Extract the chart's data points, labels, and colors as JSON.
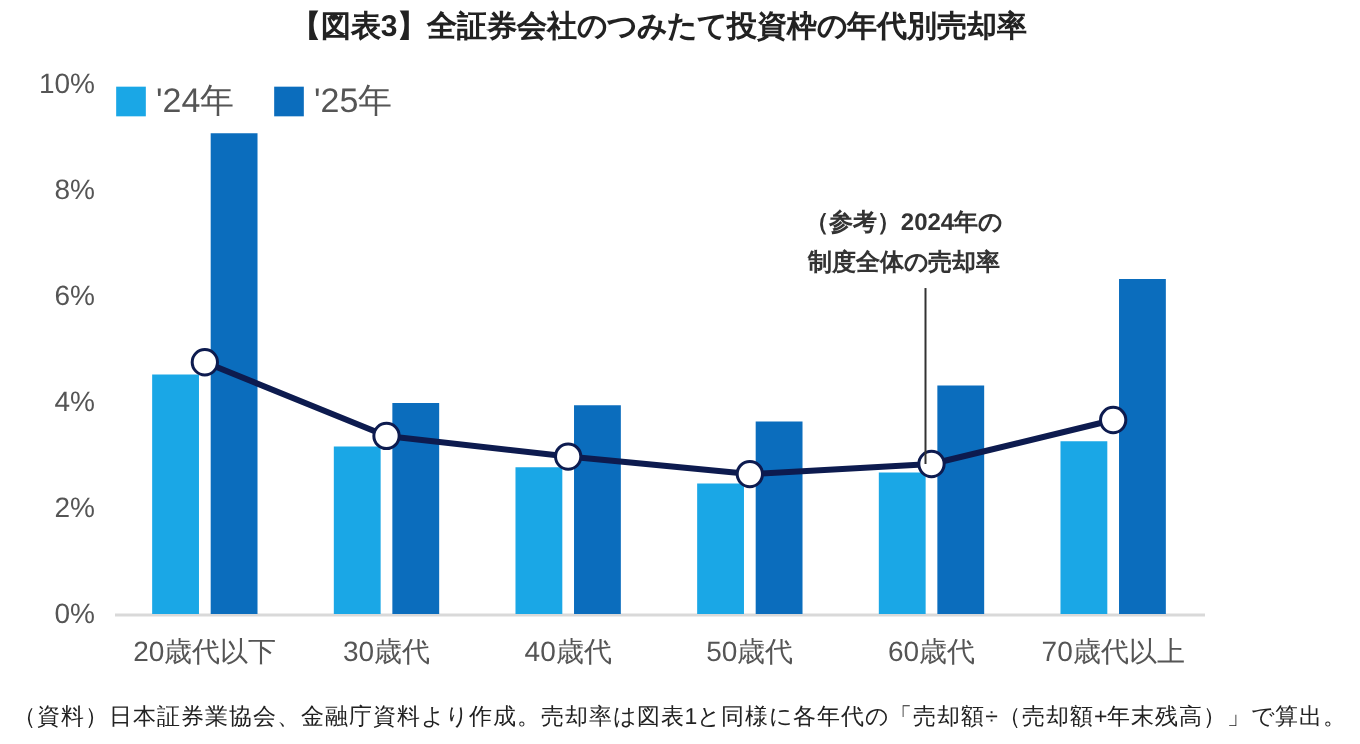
{
  "chart_data": {
    "type": "bar",
    "title": "【図表3】全証券会社のつみたて投資枠の年代別売却率",
    "categories": [
      "20歳代以下",
      "30歳代",
      "40歳代",
      "50歳代",
      "60歳代",
      "70歳代以上"
    ],
    "series": [
      {
        "name": "'24年",
        "color": "#1aa7e6",
        "values": [
          4.52,
          3.16,
          2.77,
          2.46,
          2.67,
          3.26
        ]
      },
      {
        "name": "'25年",
        "color": "#0b6dbd",
        "values": [
          9.07,
          3.98,
          3.94,
          3.63,
          4.31,
          6.32
        ]
      },
      {
        "type": "line",
        "color": "#0d1b4f",
        "values": [
          4.75,
          3.36,
          2.97,
          2.64,
          2.83,
          3.66
        ]
      }
    ],
    "ylim": [
      0,
      10
    ],
    "yticks": [
      {
        "value": 0,
        "label": "0%"
      },
      {
        "value": 2,
        "label": "2%"
      },
      {
        "value": 4,
        "label": "4%"
      },
      {
        "value": 6,
        "label": "6%"
      },
      {
        "value": 8,
        "label": "8%"
      },
      {
        "value": 10,
        "label": "10%"
      }
    ],
    "grid": false,
    "legend": "top left",
    "marker": "circle",
    "annotations": [
      {
        "text": "（参考）2024年の制度全体の売却率",
        "x": "60歳代",
        "y": 2.83
      },
      "（資料）日本証券業協会、金融庁資料より作成。売却率は図表1と同様に各年代の「売却額÷（売却額+年末残高）」で算出。"
    ]
  }
}
